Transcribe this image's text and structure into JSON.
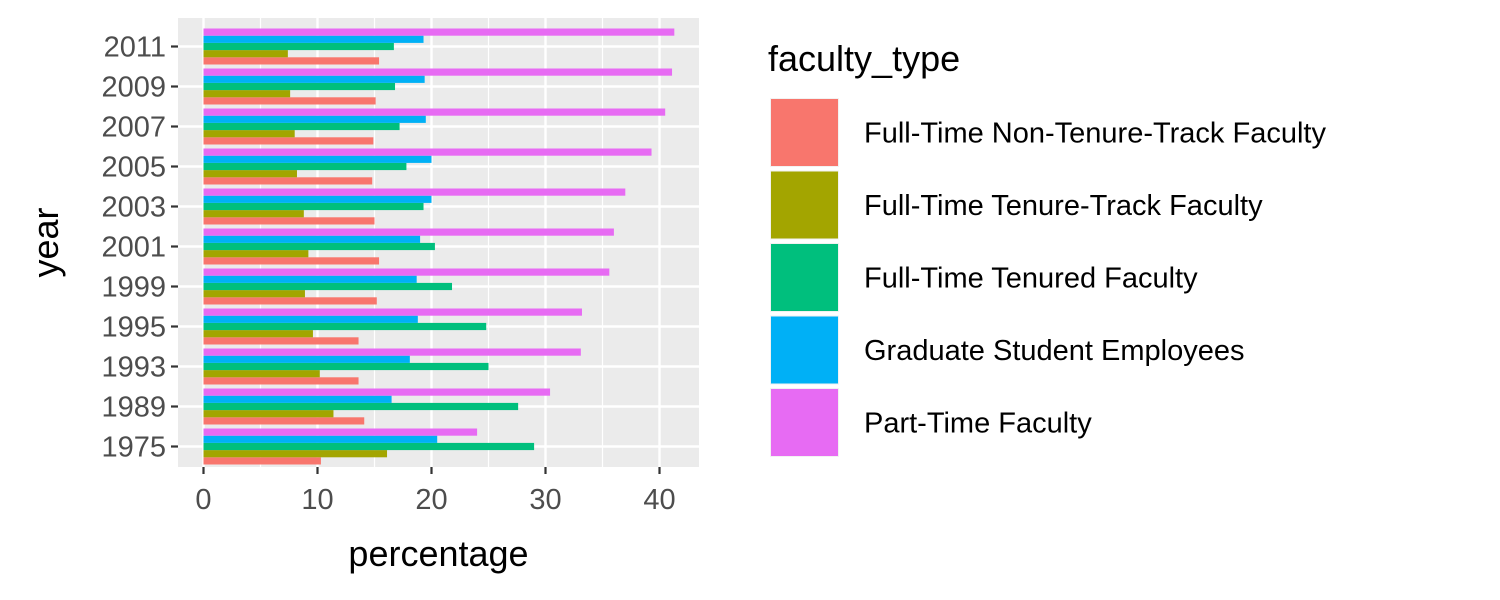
{
  "chart_data": {
    "type": "bar",
    "orientation": "horizontal",
    "position": "dodge",
    "xlabel": "percentage",
    "ylabel": "year",
    "xlim": [
      0,
      43
    ],
    "xticks": [
      0,
      10,
      20,
      30,
      40
    ],
    "grid": true,
    "legend_title": "faculty_type",
    "legend_position": "right",
    "categories": [
      "1975",
      "1989",
      "1993",
      "1995",
      "1999",
      "2001",
      "2003",
      "2005",
      "2007",
      "2009",
      "2011"
    ],
    "series": [
      {
        "name": "Full-Time Non-Tenure-Track Faculty",
        "color": "#F8766D",
        "values": [
          10.3,
          14.1,
          13.6,
          13.6,
          15.2,
          15.4,
          15.0,
          14.8,
          14.9,
          15.1,
          15.4
        ]
      },
      {
        "name": "Full-Time Tenure-Track Faculty",
        "color": "#A3A500",
        "values": [
          16.1,
          11.4,
          10.2,
          9.6,
          8.9,
          9.2,
          8.8,
          8.2,
          8.0,
          7.6,
          7.4
        ]
      },
      {
        "name": "Full-Time Tenured Faculty",
        "color": "#00BF7D",
        "values": [
          29.0,
          27.6,
          25.0,
          24.8,
          21.8,
          20.3,
          19.3,
          17.8,
          17.2,
          16.8,
          16.7
        ]
      },
      {
        "name": "Graduate Student Employees",
        "color": "#00B0F6",
        "values": [
          20.5,
          16.5,
          18.1,
          18.8,
          18.7,
          19.0,
          20.0,
          20.0,
          19.5,
          19.4,
          19.3
        ]
      },
      {
        "name": "Part-Time Faculty",
        "color": "#E76BF3",
        "values": [
          24.0,
          30.4,
          33.1,
          33.2,
          35.6,
          36.0,
          37.0,
          39.3,
          40.5,
          41.1,
          41.3
        ]
      }
    ]
  }
}
